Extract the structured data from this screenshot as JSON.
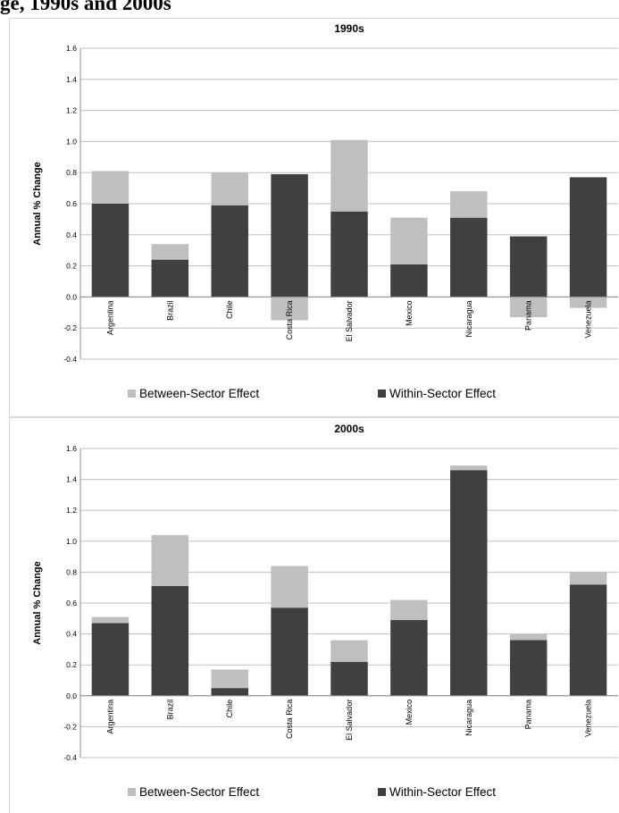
{
  "heading": "ge, 1990s and 2000s",
  "colors": {
    "between": "#bfbfbf",
    "within": "#404040",
    "grid": "#bfbfbf",
    "axis": "#8c8c8c"
  },
  "chart_data": [
    {
      "type": "bar",
      "stacked": true,
      "title": "1990s",
      "ylabel": "Annual % Change",
      "xlabel": "",
      "ylim": [
        -0.4,
        1.6
      ],
      "yticks": [
        "-0.4",
        "-0.2",
        "0.0",
        "0.2",
        "0.4",
        "0.6",
        "0.8",
        "1.0",
        "1.2",
        "1.4",
        "1.6"
      ],
      "categories": [
        "Argentina",
        "Brazil",
        "Chile",
        "Costa Rica",
        "El Salvador",
        "Mexico",
        "Nicaragua",
        "Panama",
        "Venezuela"
      ],
      "series": [
        {
          "name": "Between-Sector Effect",
          "values": [
            0.21,
            0.1,
            0.21,
            -0.15,
            0.46,
            0.3,
            0.17,
            -0.13,
            -0.07
          ]
        },
        {
          "name": "Within-Sector Effect",
          "values": [
            0.6,
            0.24,
            0.59,
            0.79,
            0.55,
            0.21,
            0.51,
            0.39,
            0.77
          ]
        }
      ],
      "legend": "bottom"
    },
    {
      "type": "bar",
      "stacked": true,
      "title": "2000s",
      "ylabel": "Annual % Change",
      "xlabel": "",
      "ylim": [
        -0.4,
        1.6
      ],
      "yticks": [
        "-0.4",
        "-0.2",
        "0.0",
        "0.2",
        "0.4",
        "0.6",
        "0.8",
        "1.0",
        "1.2",
        "1.4",
        "1.6"
      ],
      "categories": [
        "Argentina",
        "Brazil",
        "Chile",
        "Costa Rica",
        "El Salvador",
        "Mexico",
        "Nicaragua",
        "Panama",
        "Venezuela"
      ],
      "series": [
        {
          "name": "Between-Sector Effect",
          "values": [
            0.04,
            0.33,
            0.12,
            0.27,
            0.14,
            0.13,
            0.03,
            0.04,
            0.08
          ]
        },
        {
          "name": "Within-Sector Effect",
          "values": [
            0.47,
            0.71,
            0.05,
            0.57,
            0.22,
            0.49,
            1.46,
            0.36,
            0.72
          ]
        }
      ],
      "legend": "bottom"
    }
  ]
}
